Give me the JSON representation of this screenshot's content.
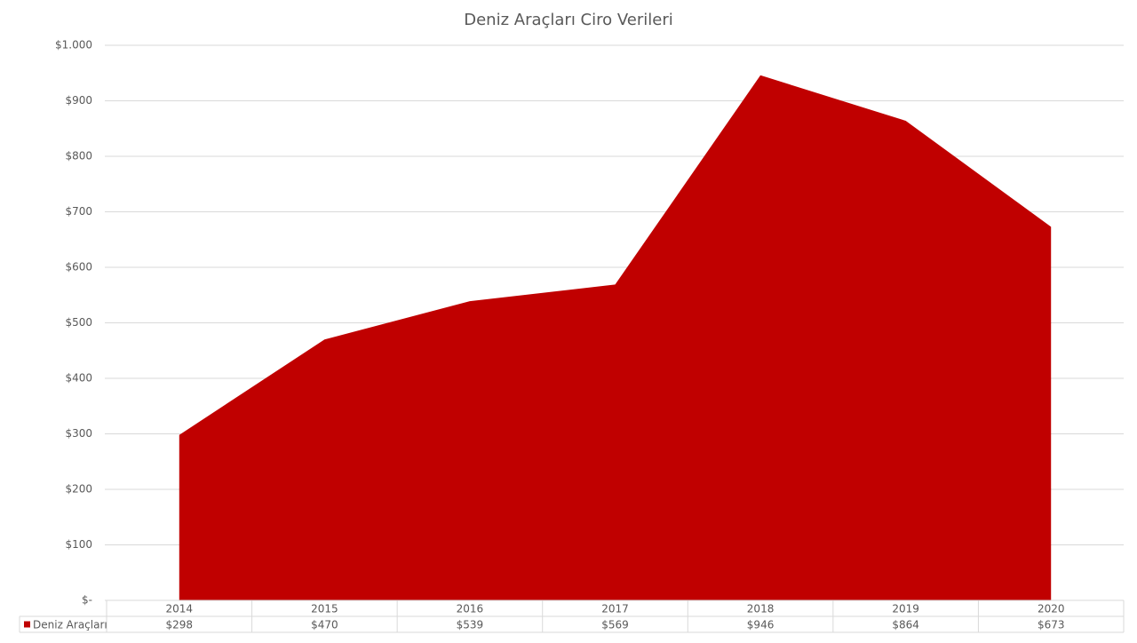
{
  "chart_data": {
    "type": "area",
    "title": "Deniz Araçları Ciro Verileri",
    "categories": [
      "2014",
      "2015",
      "2016",
      "2017",
      "2018",
      "2019",
      "2020"
    ],
    "series": [
      {
        "name": "Deniz Araçları",
        "color": "#c00000",
        "values": [
          298,
          470,
          539,
          569,
          946,
          864,
          673
        ],
        "value_labels": [
          "$298",
          "$470",
          "$539",
          "$569",
          "$946",
          "$864",
          "$673"
        ]
      }
    ],
    "ylim": [
      0,
      1000
    ],
    "yticks": [
      {
        "value": 0,
        "label": "$-"
      },
      {
        "value": 100,
        "label": "$100"
      },
      {
        "value": 200,
        "label": "$200"
      },
      {
        "value": 300,
        "label": "$300"
      },
      {
        "value": 400,
        "label": "$400"
      },
      {
        "value": 500,
        "label": "$500"
      },
      {
        "value": 600,
        "label": "$600"
      },
      {
        "value": 700,
        "label": "$700"
      },
      {
        "value": 800,
        "label": "$800"
      },
      {
        "value": 900,
        "label": "$900"
      },
      {
        "value": 1000,
        "label": "$1.000"
      }
    ],
    "grid": true,
    "legend": "data-table"
  }
}
